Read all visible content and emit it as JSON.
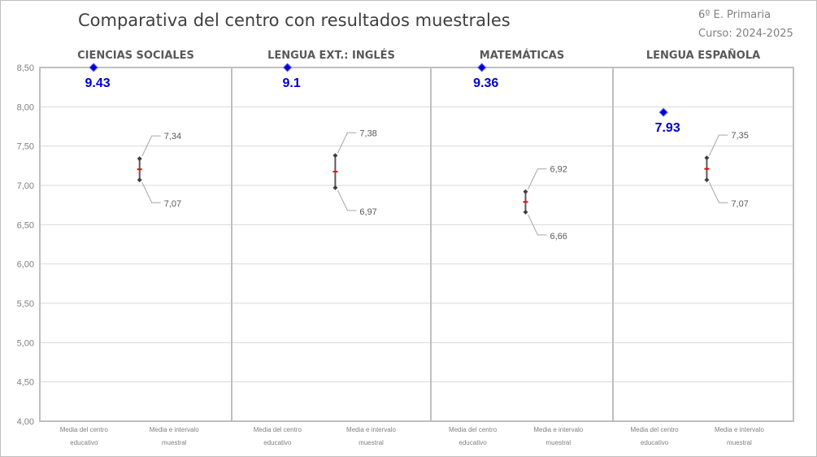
{
  "header": {
    "title": "Comparativa del centro con resultados muestrales",
    "grade": "6º E. Primaria",
    "course": "Curso: 2024-2025"
  },
  "colors": {
    "gridline": "#d9d9d9",
    "panel_border": "#bfbfbf",
    "center_marker": "#0000cc",
    "center_label": "#0000cc",
    "interval_line": "#595959",
    "interval_end": "#404040",
    "interval_mid": "#ff0000",
    "tick_text": "#7f7f7f",
    "category_text": "#808080",
    "panel_title_text": "#595959"
  },
  "chart_data": {
    "type": "scatter",
    "title": "Comparativa del centro con resultados muestrales",
    "ylim": [
      4.0,
      8.5
    ],
    "y_ticks": [
      "4,00",
      "4,50",
      "5,00",
      "5,50",
      "6,00",
      "6,50",
      "7,00",
      "7,50",
      "8,00",
      "8,50"
    ],
    "grid": true,
    "category_labels": {
      "center": [
        "Media del centro",
        "educativo"
      ],
      "sample": [
        "Media e intervalo",
        "muestral"
      ]
    },
    "panels": [
      {
        "subject": "CIENCIAS SOCIALES",
        "center_mean": 9.43,
        "center_label": "9.43",
        "interval_low": 7.07,
        "interval_high": 7.34,
        "interval_low_label": "7,07",
        "interval_high_label": "7,34"
      },
      {
        "subject": "LENGUA EXT.: INGLÉS",
        "center_mean": 9.1,
        "center_label": "9.1",
        "interval_low": 6.97,
        "interval_high": 7.38,
        "interval_low_label": "6,97",
        "interval_high_label": "7,38"
      },
      {
        "subject": "MATEMÁTICAS",
        "center_mean": 9.36,
        "center_label": "9.36",
        "interval_low": 6.66,
        "interval_high": 6.92,
        "interval_low_label": "6,66",
        "interval_high_label": "6,92"
      },
      {
        "subject": "LENGUA ESPAÑOLA",
        "center_mean": 7.93,
        "center_label": "7.93",
        "interval_low": 7.07,
        "interval_high": 7.35,
        "interval_low_label": "7,07",
        "interval_high_label": "7,35"
      }
    ]
  }
}
